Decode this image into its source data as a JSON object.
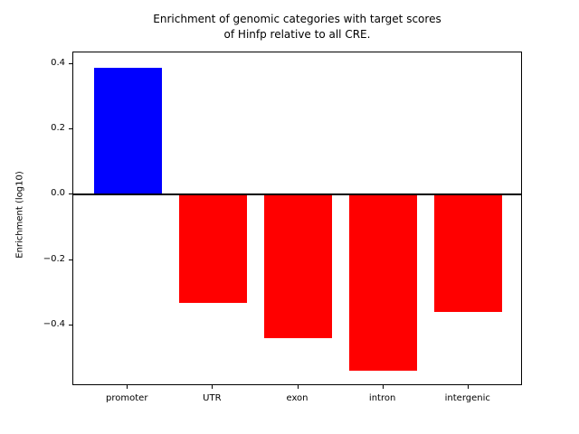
{
  "chart_data": {
    "type": "bar",
    "title_lines": [
      "Enrichment of genomic categories with target scores",
      "of Hinfp relative to all CRE."
    ],
    "ylabel": "Enrichment (log10)",
    "xlabel": "",
    "categories": [
      "promoter",
      "UTR",
      "exon",
      "intron",
      "intergenic"
    ],
    "values": [
      0.39,
      -0.33,
      -0.44,
      -0.54,
      -0.36
    ],
    "bar_colors": [
      "#0000ff",
      "#ff0000",
      "#ff0000",
      "#ff0000",
      "#ff0000"
    ],
    "positive_color": "#0000ff",
    "negative_color": "#ff0000",
    "ylim": [
      -0.586,
      0.436
    ],
    "xlim": [
      -0.64,
      4.64
    ],
    "yticks": [
      0.4,
      0.2,
      0.0,
      -0.2,
      -0.4
    ],
    "ytick_labels": [
      "0.4",
      "0.2",
      "0.0",
      "−0.2",
      "−0.4"
    ],
    "bar_width_fraction": 0.8,
    "zero_line": {
      "value": 0.0,
      "color": "#000000",
      "thickness_px": 2
    },
    "grid": false,
    "legend": null,
    "background_color": "#ffffff",
    "spine_color": "#000000"
  }
}
